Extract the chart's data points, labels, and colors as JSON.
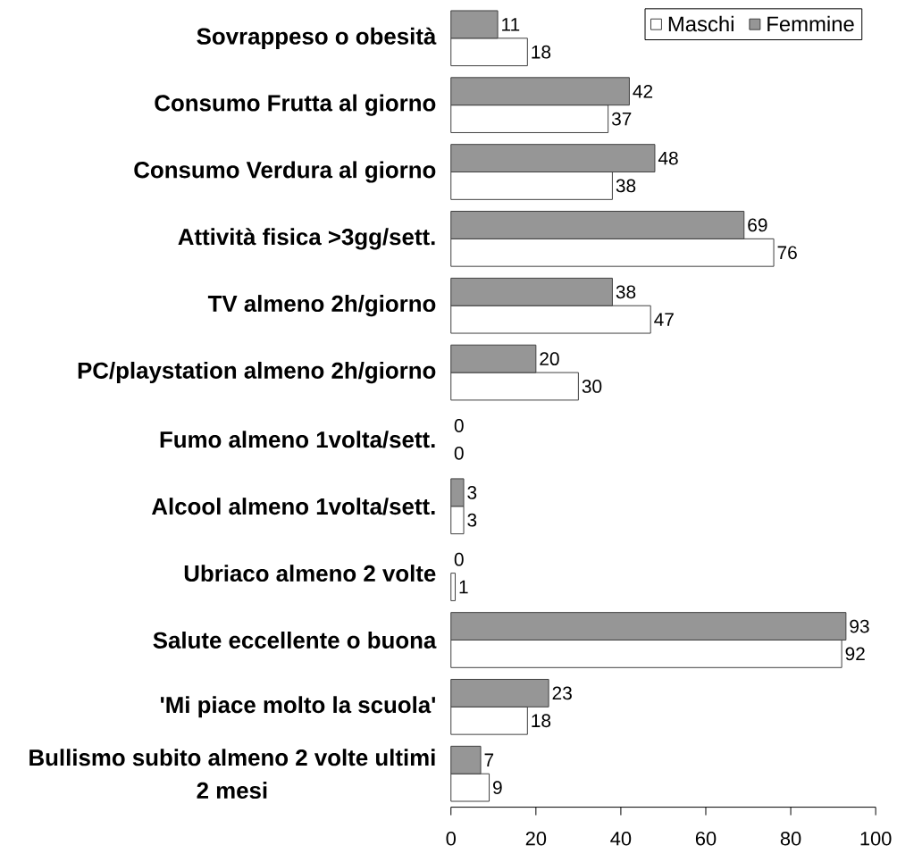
{
  "chart_data": {
    "type": "bar",
    "orientation": "horizontal",
    "categories": [
      "Sovrappeso o obesità",
      "Consumo Frutta al giorno",
      "Consumo Verdura al giorno",
      "Attività fisica >3gg/sett.",
      "TV almeno 2h/giorno",
      "PC/playstation almeno 2h/giorno",
      "Fumo almeno 1volta/sett.",
      "Alcool almeno 1volta/sett.",
      "Ubriaco almeno 2 volte",
      "Salute eccellente o buona",
      "'Mi piace molto la scuola'",
      "Bullismo subito almeno 2 volte ultimi 2 mesi"
    ],
    "series": [
      {
        "name": "Maschi",
        "color": "#ffffff",
        "values": [
          18,
          37,
          38,
          76,
          47,
          30,
          0,
          3,
          1,
          92,
          18,
          9
        ]
      },
      {
        "name": "Femmine",
        "color": "#969696",
        "values": [
          11,
          42,
          48,
          69,
          38,
          20,
          0,
          3,
          0,
          93,
          23,
          7
        ]
      }
    ],
    "xlim": [
      0,
      100
    ],
    "xticks": [
      0,
      20,
      40,
      60,
      80,
      100
    ],
    "data_labels": true,
    "legend": "top right"
  }
}
